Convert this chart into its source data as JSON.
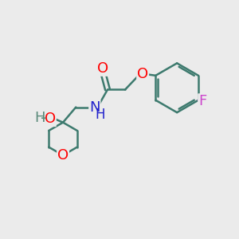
{
  "bg_color": "#ebebeb",
  "bond_color": "#3d7a6e",
  "bond_width": 1.8,
  "O_color": "#ff0000",
  "N_color": "#2222cc",
  "F_color": "#cc44cc",
  "H_color": "#5a8a7a",
  "font_size_atom": 13,
  "figsize": [
    3.0,
    3.0
  ],
  "dpi": 100,
  "xlim": [
    0,
    10
  ],
  "ylim": [
    0,
    10
  ]
}
